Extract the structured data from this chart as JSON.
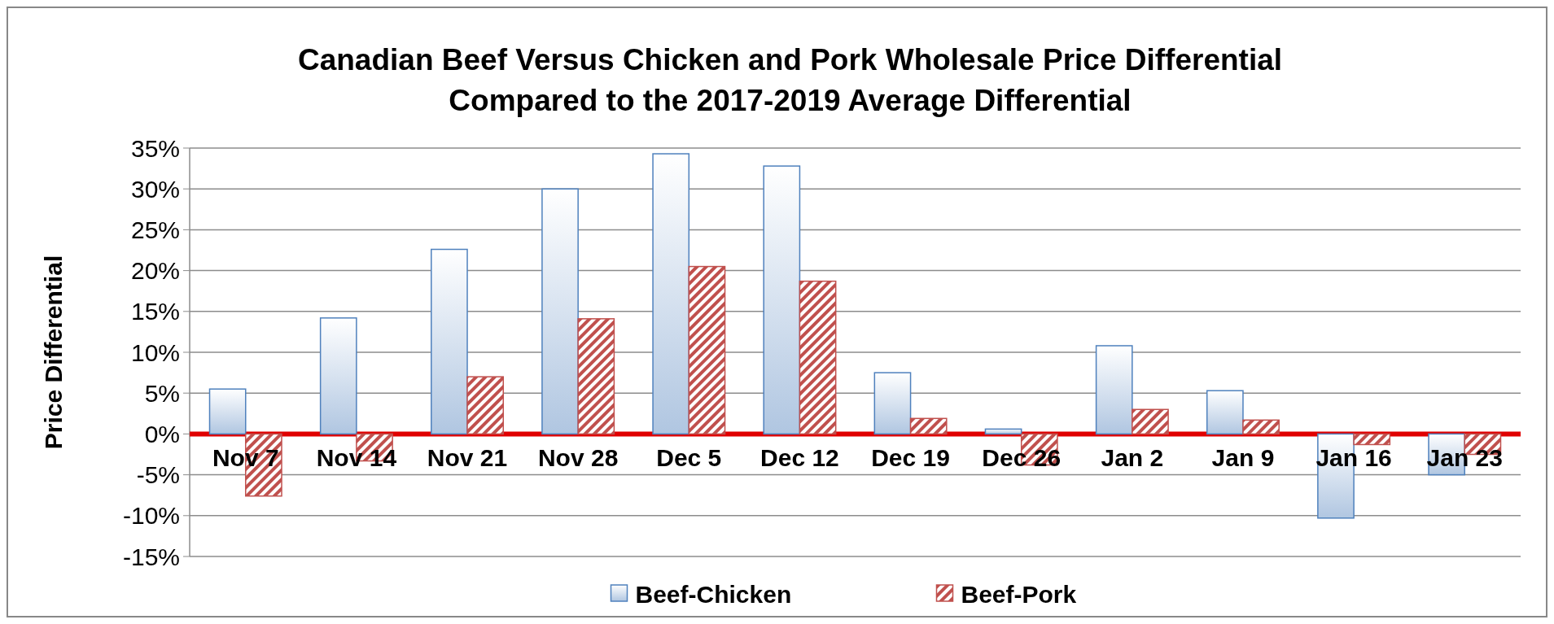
{
  "chart_data": {
    "type": "bar",
    "title": "Canadian Beef Versus Chicken and Pork Wholesale Price Differential\nCompared to the 2017-2019 Average Differential",
    "ylabel": "Price Differential",
    "categories": [
      "Nov 7",
      "Nov 14",
      "Nov 21",
      "Nov 28",
      "Dec 5",
      "Dec 12",
      "Dec 19",
      "Dec 26",
      "Jan 2",
      "Jan 9",
      "Jan 16",
      "Jan 23"
    ],
    "series": [
      {
        "name": "Beef-Chicken",
        "color": "#4f81bd",
        "values": [
          5.5,
          14.2,
          22.6,
          30.0,
          34.3,
          32.8,
          7.5,
          0.6,
          10.8,
          5.3,
          -10.3,
          -5.0
        ]
      },
      {
        "name": "Beef-Pork",
        "color": "#c0504d",
        "values": [
          -7.6,
          -3.3,
          7.0,
          14.1,
          20.5,
          18.7,
          1.9,
          -3.8,
          3.0,
          1.7,
          -1.3,
          -2.5
        ]
      }
    ],
    "ylim": [
      -15,
      35
    ],
    "yticks": [
      {
        "value": -15,
        "label": "-15%"
      },
      {
        "value": -10,
        "label": "-10%"
      },
      {
        "value": -5,
        "label": "-5%"
      },
      {
        "value": 0,
        "label": "0%"
      },
      {
        "value": 5,
        "label": "5%"
      },
      {
        "value": 10,
        "label": "10%"
      },
      {
        "value": 15,
        "label": "15%"
      },
      {
        "value": 20,
        "label": "20%"
      },
      {
        "value": 25,
        "label": "25%"
      },
      {
        "value": 30,
        "label": "30%"
      },
      {
        "value": 35,
        "label": "35%"
      }
    ],
    "grid": "y",
    "legend": "bottom"
  }
}
